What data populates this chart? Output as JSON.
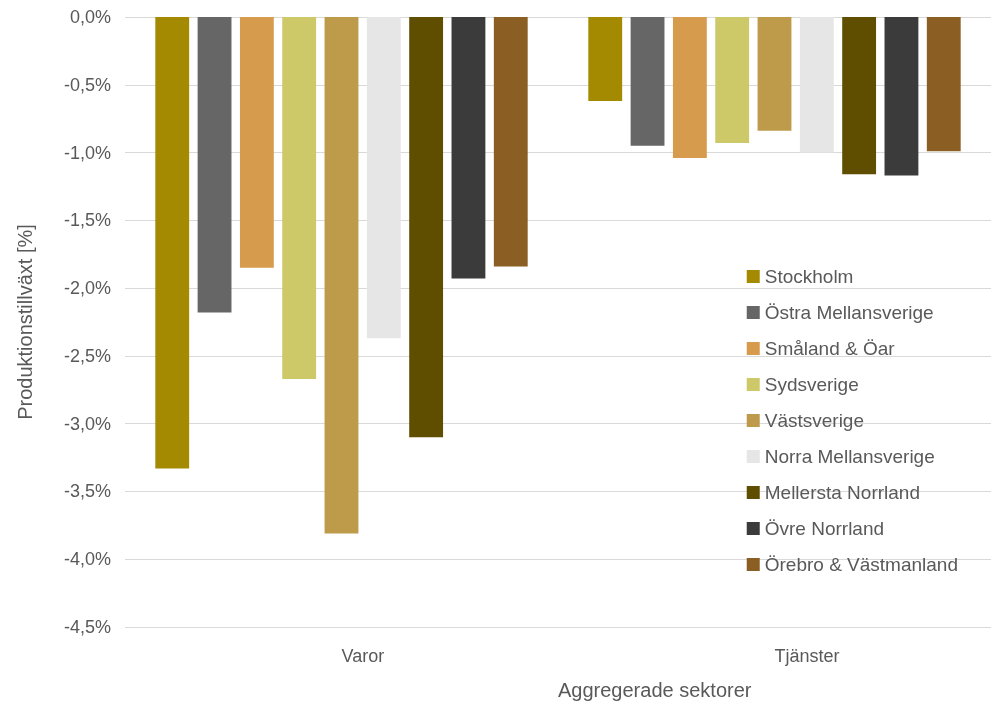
{
  "chart_data": {
    "type": "bar",
    "xlabel": "Aggregerade sektorer",
    "ylabel": "Produktionstillväxt [%]",
    "categories": [
      "Varor",
      "Tjänster"
    ],
    "series": [
      {
        "name": "Stockholm",
        "color": "#a38a00",
        "values": [
          -3.33,
          -0.62
        ]
      },
      {
        "name": "Östra Mellansverige",
        "color": "#666666",
        "values": [
          -2.18,
          -0.95
        ]
      },
      {
        "name": "Småland & Öar",
        "color": "#d69b4c",
        "values": [
          -1.85,
          -1.04
        ]
      },
      {
        "name": "Sydsverige",
        "color": "#cdc968",
        "values": [
          -2.67,
          -0.93
        ]
      },
      {
        "name": "Västsverige",
        "color": "#be9a4b",
        "values": [
          -3.81,
          -0.84
        ]
      },
      {
        "name": "Norra Mellansverige",
        "color": "#e6e6e6",
        "values": [
          -2.37,
          -1.0
        ]
      },
      {
        "name": "Mellersta Norrland",
        "color": "#5f4e00",
        "values": [
          -3.1,
          -1.16
        ]
      },
      {
        "name": "Övre Norrland",
        "color": "#3b3b3b",
        "values": [
          -1.93,
          -1.17
        ]
      },
      {
        "name": "Örebro & Västmanland",
        "color": "#8b5e23",
        "values": [
          -1.84,
          -0.99
        ]
      }
    ],
    "ylim": [
      -4.5,
      0
    ],
    "yticks": [
      {
        "value": 0,
        "label": "0,0%"
      },
      {
        "value": -0.5,
        "label": "-0,5%"
      },
      {
        "value": -1,
        "label": "-1,0%"
      },
      {
        "value": -1.5,
        "label": "-1,5%"
      },
      {
        "value": -2,
        "label": "-2,0%"
      },
      {
        "value": -2.5,
        "label": "-2,5%"
      },
      {
        "value": -3,
        "label": "-3,0%"
      },
      {
        "value": -3.5,
        "label": "-3,5%"
      },
      {
        "value": -4,
        "label": "-4,0%"
      },
      {
        "value": -4.5,
        "label": "-4,5%"
      }
    ],
    "grid": "y",
    "legend": "right"
  }
}
